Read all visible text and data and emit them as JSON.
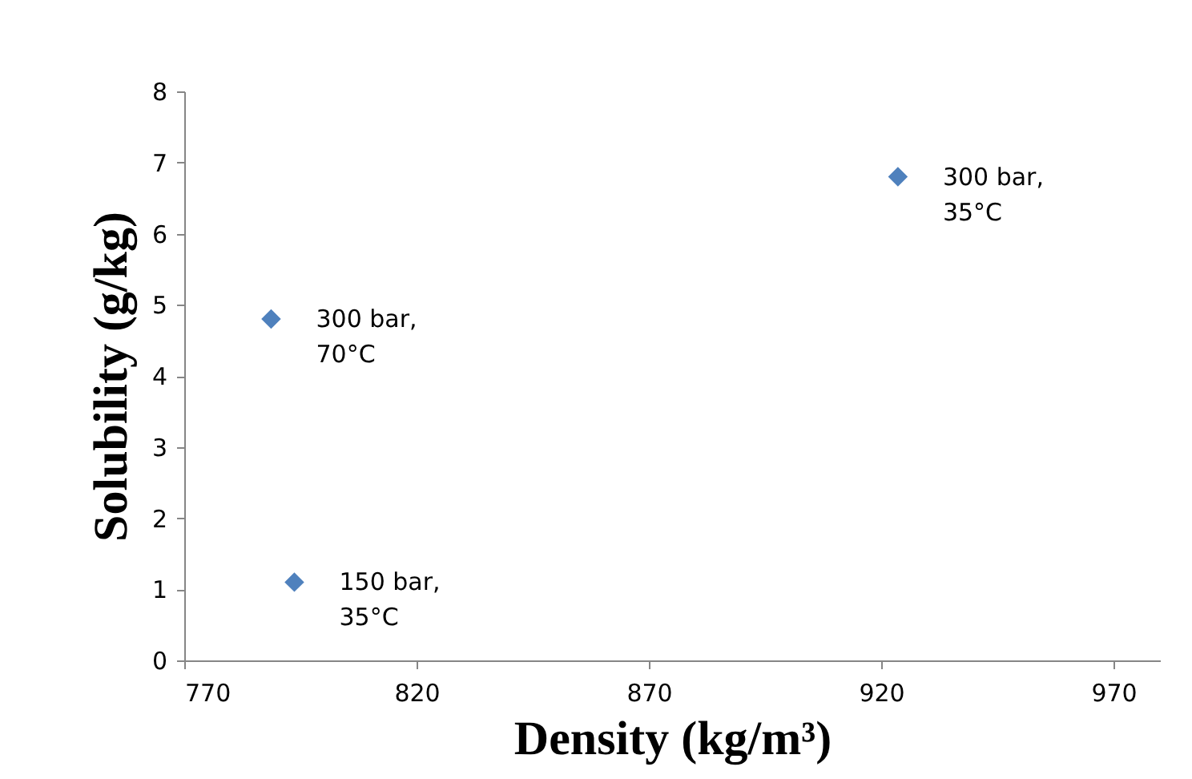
{
  "chart_data": {
    "type": "scatter",
    "xlabel": "Density (kg/m³)",
    "ylabel": "Solubility (g/kg)",
    "x": [
      788.7,
      793.7,
      923.6
    ],
    "values": [
      4.8,
      1.1,
      6.8
    ],
    "color": "#4f81bd",
    "marker": "diamond",
    "xlim": [
      770,
      980
    ],
    "xticks": [
      770,
      820,
      870,
      920,
      970
    ],
    "ylim": [
      0,
      8
    ],
    "yticks": [
      0,
      1,
      2,
      3,
      4,
      5,
      6,
      7,
      8
    ],
    "grid": false,
    "annotations": [
      {
        "text": "300 bar,\n70°C",
        "x": 788.7,
        "y": 4.8
      },
      {
        "text": "150 bar,\n35°C",
        "x": 793.7,
        "y": 1.1
      },
      {
        "text": "300 bar,\n35°C",
        "x": 923.6,
        "y": 6.8
      }
    ]
  }
}
